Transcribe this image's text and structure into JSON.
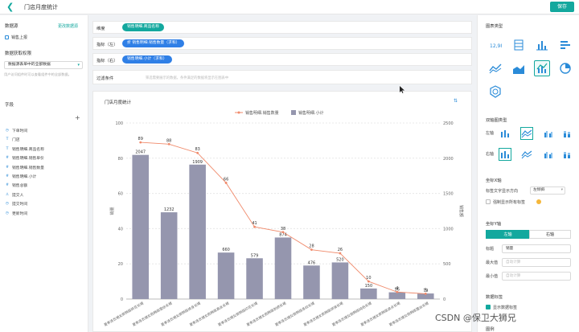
{
  "header": {
    "title": "门店月度统计",
    "save_label": "保存"
  },
  "left": {
    "datasource_title": "数据源",
    "change_source_link": "更改数据源",
    "source_name": "销售上报",
    "permission_title": "数据获取权限",
    "permission_value": "数据源表单中的全部数据",
    "permission_hint": "用户访问组件时可以查看组件中的全部数据。",
    "fields_title": "字段",
    "fields": [
      {
        "icon": "clock",
        "type_glyph": "◷",
        "label": "下单时间"
      },
      {
        "icon": "text",
        "type_glyph": "T",
        "label": "门店"
      },
      {
        "icon": "text",
        "type_glyph": "T",
        "label": "销售明细.商品名称"
      },
      {
        "icon": "number",
        "type_glyph": "#",
        "label": "销售明细.销售单价"
      },
      {
        "icon": "number",
        "type_glyph": "#",
        "label": "销售明细.销售数量"
      },
      {
        "icon": "number",
        "type_glyph": "#",
        "label": "销售明细.小计"
      },
      {
        "icon": "number",
        "type_glyph": "#",
        "label": "销售总额"
      },
      {
        "icon": "person",
        "type_glyph": "♙",
        "label": "提交人"
      },
      {
        "icon": "clock",
        "type_glyph": "◷",
        "label": "提交时间"
      },
      {
        "icon": "clock",
        "type_glyph": "◷",
        "label": "更新时间"
      }
    ]
  },
  "config": {
    "dimension_label": "维度",
    "dimension_pill": "销售明细.商品名称",
    "left_metric_label": "指标（左）",
    "left_metric_pill": "折 销售明细.销售数量（求和）",
    "right_metric_label": "指标（右）",
    "right_metric_pill": "销售明细.小计（求和）",
    "filter_label": "过滤条件",
    "filter_placeholder": "筛选需要展示的数据，条件满足的数据将显示在图表中"
  },
  "chart_title": "门店月度统计",
  "chart_data": {
    "type": "bar",
    "categories": [
      "夏季连衣裙女款韩版碎花长裙",
      "夏季连衣裙女款韩版雪纺长裙",
      "夏季连衣裙女款韩版修身长裙",
      "夏季连衣裙女款韩版真丝长裙",
      "夏季连衣裙女款韩版印花长裙",
      "夏季连衣裙女款韩版刺绣长裙",
      "夏季连衣裙女款韩版条纹长裙",
      "夏季连衣裙女款韩版拼接长裙",
      "夏季连衣裙女款韩版纯色长裙",
      "夏季连衣裙女款韩版波点长裙",
      "夏季连衣裙女款韩版蕾丝长裙"
    ],
    "series": [
      {
        "name": "销售明细.销售数量",
        "type": "line",
        "axis": "left",
        "color": "#f08a6b",
        "values": [
          89,
          88,
          83,
          66,
          41,
          38,
          28,
          26,
          10,
          4,
          3
        ]
      },
      {
        "name": "销售明细.小计",
        "type": "bar",
        "axis": "right",
        "color": "#9596ae",
        "values": [
          2047,
          1232,
          1909,
          660,
          579,
          874,
          476,
          520,
          150,
          96,
          79
        ]
      }
    ],
    "xlabel": "",
    "ylabel_left": "销量",
    "ylabel_right": "销售额",
    "ylim_left": [
      0,
      100
    ],
    "ylim_right": [
      0,
      2500
    ],
    "yticks_left": [
      0,
      20,
      40,
      60,
      80,
      100
    ],
    "yticks_right": [
      0,
      500,
      1000,
      1500,
      2000,
      2500
    ],
    "grid": true,
    "legend": "top-center"
  },
  "right": {
    "chart_type_title": "图表类型",
    "chart_types": [
      {
        "icon": "number-card-icon",
        "active": false
      },
      {
        "icon": "table-icon",
        "active": false
      },
      {
        "icon": "bar-chart-icon",
        "active": false
      },
      {
        "icon": "horizontal-bar-icon",
        "active": false
      },
      {
        "icon": "line-chart-icon",
        "active": false
      },
      {
        "icon": "area-chart-icon",
        "active": false
      },
      {
        "icon": "dual-axis-icon",
        "active": true
      },
      {
        "icon": "pie-chart-icon",
        "active": false
      },
      {
        "icon": "gauge-icon",
        "active": false
      }
    ],
    "dual_type_title": "双轴图类型",
    "left_axis_label": "左轴",
    "right_axis_label": "右轴",
    "x_axis_title": "坐标X轴",
    "label_dir_label": "标签文字显示方向",
    "label_dir_value": "左倾斜",
    "force_all_label": "强制显示所有标签",
    "y_axis_title": "坐标Y轴",
    "y_tabs": [
      "左轴",
      "右轴"
    ],
    "title_label": "标题",
    "title_value": "销量",
    "max_label": "最大值",
    "max_placeholder": "自动计算",
    "min_label": "最小值",
    "min_placeholder": "自动计算",
    "data_label_title": "数据标签",
    "show_data_label": "显示数据标签",
    "legend_title": "图例",
    "accent": "#13a89e",
    "blue": "#2f7fe6"
  },
  "watermark": "CSDN @保卫大狮兄"
}
